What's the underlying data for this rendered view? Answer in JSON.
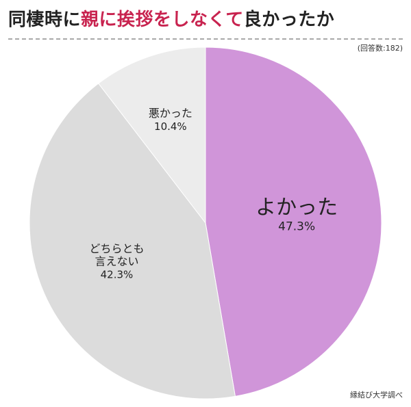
{
  "title": {
    "part1": "同棲時に",
    "highlight": "親に挨拶をしなくて",
    "part2": "良かったか"
  },
  "note": "(回答数:182)",
  "source": "縁結び大学調べ",
  "colors": {
    "accent": "#c8234f",
    "slices": [
      "#d095d9",
      "#dcdcdc",
      "#ececec"
    ]
  },
  "chart_data": {
    "type": "pie",
    "slices": [
      {
        "label": "よかった",
        "value": 47.3,
        "value_label": "47.3%"
      },
      {
        "label": "どちらとも言えない",
        "label_lines": [
          "どちらとも",
          "言えない"
        ],
        "value": 42.3,
        "value_label": "42.3%"
      },
      {
        "label": "悪かった",
        "value": 10.4,
        "value_label": "10.4%"
      }
    ],
    "start": "12 o'clock",
    "direction": "clockwise"
  }
}
